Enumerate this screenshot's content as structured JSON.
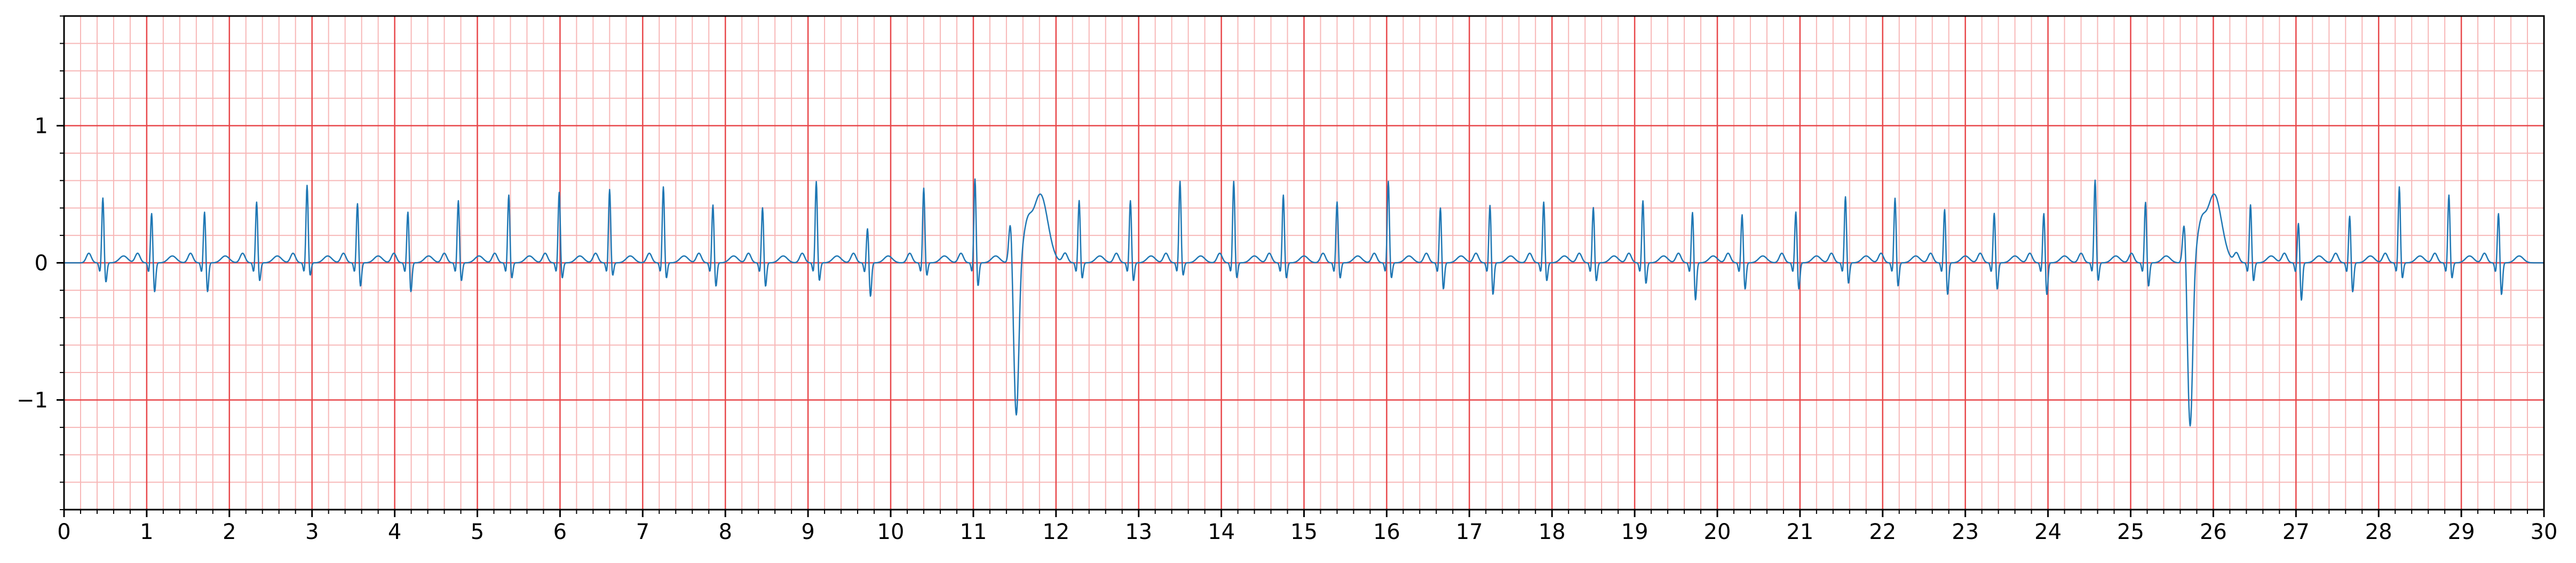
{
  "chart_data": {
    "type": "line",
    "title": "",
    "xlabel": "",
    "ylabel": "",
    "xlim": [
      0,
      30
    ],
    "ylim": [
      -1.8,
      1.8
    ],
    "grid": {
      "major_x_step": 1,
      "major_y_step": 1,
      "minor_x_step": 0.2,
      "minor_y_step": 0.2,
      "major_color": "#e8474a",
      "minor_color": "#f7b7b7"
    },
    "x_ticks": [
      "0",
      "1",
      "2",
      "3",
      "4",
      "5",
      "6",
      "7",
      "8",
      "9",
      "10",
      "11",
      "12",
      "13",
      "14",
      "15",
      "16",
      "17",
      "18",
      "19",
      "20",
      "21",
      "22",
      "23",
      "24",
      "25",
      "26",
      "27",
      "28",
      "29",
      "30"
    ],
    "y_ticks": [
      {
        "value": -1,
        "label": "−1"
      },
      {
        "value": 0,
        "label": "0"
      },
      {
        "value": 1,
        "label": "1"
      }
    ],
    "series": [
      {
        "color": "#1f77b4",
        "beats": [
          {
            "t": 0.47,
            "r": 0.48,
            "s": -0.15
          },
          {
            "t": 1.06,
            "r": 0.37,
            "s": -0.22
          },
          {
            "t": 1.7,
            "r": 0.38,
            "s": -0.22
          },
          {
            "t": 2.33,
            "r": 0.45,
            "s": -0.14
          },
          {
            "t": 2.94,
            "r": 0.57,
            "s": -0.1
          },
          {
            "t": 3.55,
            "r": 0.44,
            "s": -0.18
          },
          {
            "t": 4.16,
            "r": 0.38,
            "s": -0.22
          },
          {
            "t": 4.77,
            "r": 0.46,
            "s": -0.14
          },
          {
            "t": 5.38,
            "r": 0.5,
            "s": -0.12
          },
          {
            "t": 5.99,
            "r": 0.52,
            "s": -0.12
          },
          {
            "t": 6.6,
            "r": 0.54,
            "s": -0.1
          },
          {
            "t": 7.25,
            "r": 0.56,
            "s": -0.12
          },
          {
            "t": 7.85,
            "r": 0.43,
            "s": -0.18
          },
          {
            "t": 8.45,
            "r": 0.41,
            "s": -0.18
          },
          {
            "t": 9.1,
            "r": 0.6,
            "s": -0.14
          },
          {
            "t": 9.72,
            "r": 0.26,
            "s": -0.25
          },
          {
            "t": 10.4,
            "r": 0.55,
            "s": -0.1
          },
          {
            "t": 11.02,
            "r": 0.62,
            "s": -0.18
          },
          {
            "t": 11.48,
            "r": 0.33,
            "s": -1.12,
            "pvc": true
          },
          {
            "t": 12.28,
            "r": 0.46,
            "s": -0.12
          },
          {
            "t": 12.9,
            "r": 0.46,
            "s": -0.14
          },
          {
            "t": 13.5,
            "r": 0.6,
            "s": -0.1
          },
          {
            "t": 14.15,
            "r": 0.6,
            "s": -0.12
          },
          {
            "t": 14.75,
            "r": 0.5,
            "s": -0.12
          },
          {
            "t": 15.4,
            "r": 0.45,
            "s": -0.12
          },
          {
            "t": 16.02,
            "r": 0.6,
            "s": -0.12
          },
          {
            "t": 16.65,
            "r": 0.41,
            "s": -0.2
          },
          {
            "t": 17.25,
            "r": 0.43,
            "s": -0.24
          },
          {
            "t": 17.9,
            "r": 0.45,
            "s": -0.14
          },
          {
            "t": 18.5,
            "r": 0.41,
            "s": -0.14
          },
          {
            "t": 19.1,
            "r": 0.46,
            "s": -0.16
          },
          {
            "t": 19.7,
            "r": 0.38,
            "s": -0.28
          },
          {
            "t": 20.3,
            "r": 0.36,
            "s": -0.2
          },
          {
            "t": 20.95,
            "r": 0.38,
            "s": -0.2
          },
          {
            "t": 21.55,
            "r": 0.49,
            "s": -0.16
          },
          {
            "t": 22.15,
            "r": 0.48,
            "s": -0.18
          },
          {
            "t": 22.75,
            "r": 0.4,
            "s": -0.24
          },
          {
            "t": 23.35,
            "r": 0.37,
            "s": -0.2
          },
          {
            "t": 23.95,
            "r": 0.37,
            "s": -0.24
          },
          {
            "t": 24.57,
            "r": 0.61,
            "s": -0.14
          },
          {
            "t": 25.18,
            "r": 0.45,
            "s": -0.18
          },
          {
            "t": 25.68,
            "r": 0.33,
            "s": -1.2,
            "pvc": true
          },
          {
            "t": 26.45,
            "r": 0.43,
            "s": -0.14
          },
          {
            "t": 27.03,
            "r": 0.3,
            "s": -0.28
          },
          {
            "t": 27.65,
            "r": 0.35,
            "s": -0.22
          },
          {
            "t": 28.25,
            "r": 0.56,
            "s": -0.12
          },
          {
            "t": 28.85,
            "r": 0.5,
            "s": -0.12
          },
          {
            "t": 29.45,
            "r": 0.37,
            "s": -0.24
          }
        ]
      }
    ]
  }
}
